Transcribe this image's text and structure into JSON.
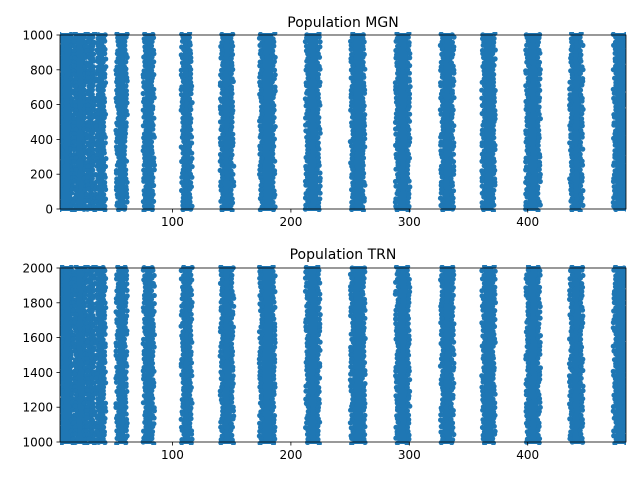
{
  "chart_data": [
    {
      "type": "scatter",
      "title": "Population MGN",
      "xlabel": "",
      "ylabel": "",
      "xlim": [
        5,
        483
      ],
      "ylim": [
        0,
        1000
      ],
      "xticks": [
        100,
        200,
        300,
        400
      ],
      "yticks": [
        0,
        200,
        400,
        600,
        800,
        1000
      ],
      "grid": false,
      "series": [
        {
          "color": "#1f77b4",
          "neuron_range": [
            0,
            1000
          ],
          "burst_bands": [
            [
              5,
              16
            ],
            [
              17,
              27
            ],
            [
              28,
              34
            ],
            [
              36,
              43
            ],
            [
              53,
              61
            ],
            [
              76,
              84
            ],
            [
              108,
              116
            ],
            [
              141,
              151
            ],
            [
              174,
              186
            ],
            [
              213,
              224
            ],
            [
              251,
              262
            ],
            [
              289,
              300
            ],
            [
              327,
              337
            ],
            [
              362,
              372
            ],
            [
              399,
              410
            ],
            [
              436,
              446
            ],
            [
              473,
              483
            ]
          ]
        }
      ]
    },
    {
      "type": "scatter",
      "title": "Population TRN",
      "xlabel": "",
      "ylabel": "",
      "xlim": [
        5,
        483
      ],
      "ylim": [
        1000,
        2000
      ],
      "xticks": [
        100,
        200,
        300,
        400
      ],
      "yticks": [
        1000,
        1200,
        1400,
        1600,
        1800,
        2000
      ],
      "grid": false,
      "series": [
        {
          "color": "#1f77b4",
          "neuron_range": [
            1000,
            2000
          ],
          "burst_bands": [
            [
              5,
              16
            ],
            [
              17,
              27
            ],
            [
              28,
              34
            ],
            [
              36,
              43
            ],
            [
              53,
              61
            ],
            [
              76,
              84
            ],
            [
              108,
              116
            ],
            [
              141,
              151
            ],
            [
              174,
              186
            ],
            [
              213,
              224
            ],
            [
              251,
              262
            ],
            [
              289,
              300
            ],
            [
              327,
              337
            ],
            [
              362,
              372
            ],
            [
              399,
              410
            ],
            [
              436,
              446
            ],
            [
              473,
              483
            ]
          ]
        }
      ]
    }
  ]
}
